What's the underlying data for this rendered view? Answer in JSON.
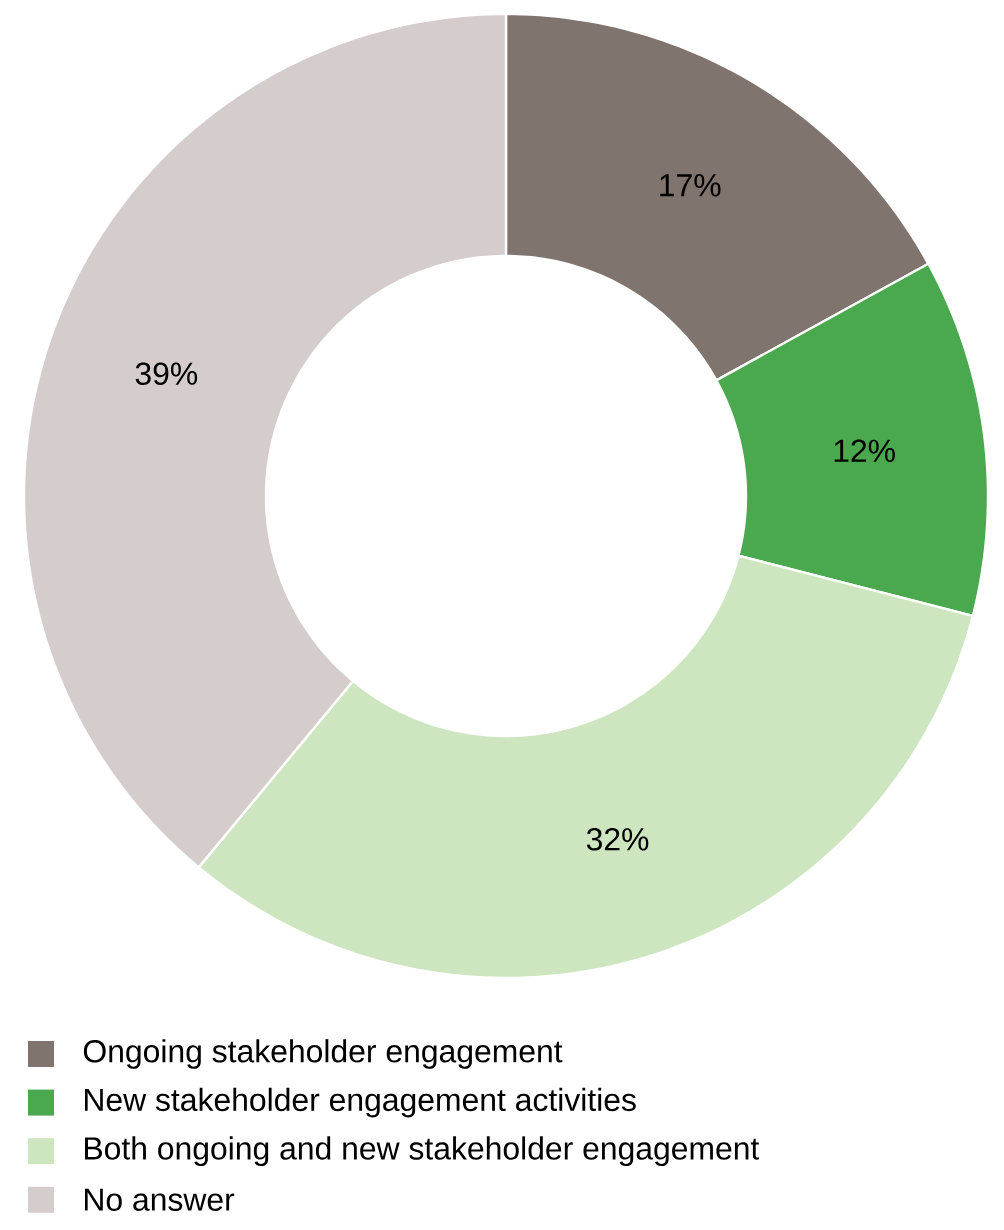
{
  "chart_data": {
    "type": "donut",
    "categories": [
      "Ongoing stakeholder engagement",
      "New stakeholder engagement activities",
      "Both ongoing and new stakeholder engagement",
      "No answer"
    ],
    "values": [
      17,
      12,
      32,
      39
    ],
    "value_labels": [
      "17%",
      "12%",
      "32%",
      "39%"
    ],
    "colors": [
      "#80746f",
      "#4aa84f",
      "#cde6bf",
      "#d4cdcc"
    ],
    "legend": "bottom left"
  }
}
